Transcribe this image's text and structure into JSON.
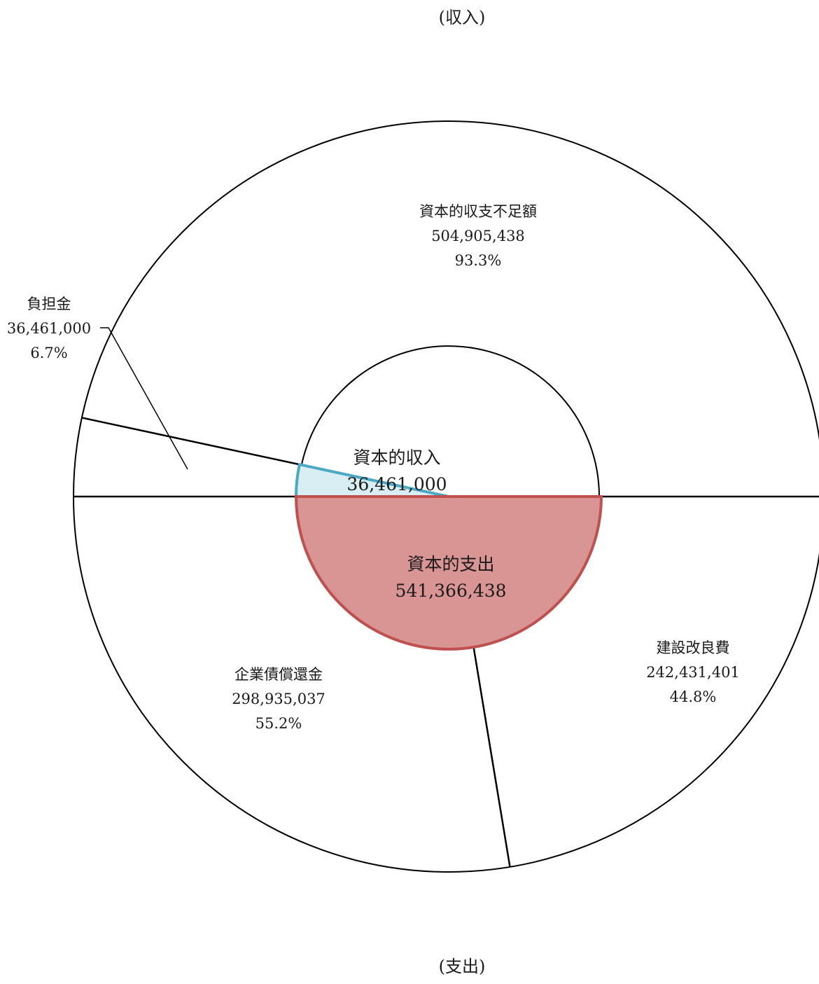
{
  "chart_data": {
    "type": "pie",
    "colors": {
      "outline": "#000000",
      "income_inner_fill": "#d9eef3",
      "income_inner_stroke": "#4ba9c4",
      "expense_inner_fill": "#d99494",
      "expense_inner_stroke": "#c0504d"
    },
    "income": {
      "title": "(収入)",
      "inner": {
        "label": "資本的収入",
        "value": "36,461,000",
        "amount": 36461000
      },
      "slices": [
        {
          "label": "資本的収支不足額",
          "value": "504,905,438",
          "percent": "93.3%",
          "amount": 504905438
        },
        {
          "label": "負担金",
          "value": "36,461,000",
          "percent": "6.7%",
          "amount": 36461000
        }
      ]
    },
    "expense": {
      "title": "(支出)",
      "inner": {
        "label": "資本的支出",
        "value": "541,366,438",
        "amount": 541366438
      },
      "slices": [
        {
          "label": "建設改良費",
          "value": "242,431,401",
          "percent": "44.8%",
          "amount": 242431401
        },
        {
          "label": "企業債償還金",
          "value": "298,935,037",
          "percent": "55.2%",
          "amount": 298935037
        }
      ]
    }
  }
}
